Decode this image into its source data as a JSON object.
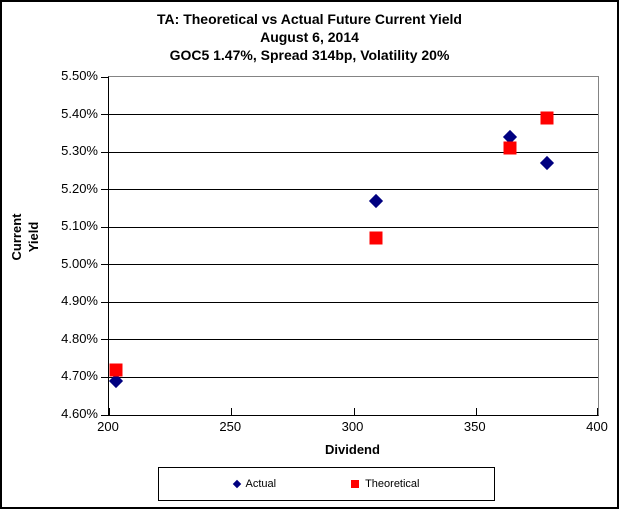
{
  "chart": {
    "title_line1": "TA: Theoretical vs Actual Future Current Yield",
    "title_line2": "August 6, 2014",
    "title_line3": "GOC5 1.47%, Spread 314bp, Volatility 20%",
    "xlabel": "Dividend",
    "ylabel": "Current Yield"
  },
  "chart_data": {
    "type": "scatter",
    "title": "TA: Theoretical vs Actual Future Current Yield",
    "subtitle": "August 6, 2014",
    "subtitle2": "GOC5 1.47%, Spread 314bp, Volatility 20%",
    "xlabel": "Dividend",
    "ylabel": "Current Yield",
    "xlim": [
      200,
      400
    ],
    "ylim": [
      4.6,
      5.5
    ],
    "x_tick_labels": [
      "200",
      "250",
      "300",
      "350",
      "400"
    ],
    "y_tick_labels": [
      "5.50%",
      "5.40%",
      "5.30%",
      "5.20%",
      "5.10%",
      "5.00%",
      "4.90%",
      "4.80%",
      "4.70%",
      "4.60%"
    ],
    "grid": "horizontal",
    "legend_position": "bottom",
    "series": [
      {
        "name": "Actual",
        "marker": "diamond",
        "color": "#000080",
        "points": [
          {
            "x": 203,
            "y": 4.69
          },
          {
            "x": 309,
            "y": 5.17
          },
          {
            "x": 364,
            "y": 5.34
          },
          {
            "x": 379,
            "y": 5.27
          }
        ]
      },
      {
        "name": "Theoretical",
        "marker": "square",
        "color": "#FF0000",
        "points": [
          {
            "x": 203,
            "y": 4.72
          },
          {
            "x": 309,
            "y": 5.07
          },
          {
            "x": 364,
            "y": 5.31
          },
          {
            "x": 379,
            "y": 5.39
          }
        ]
      }
    ]
  }
}
